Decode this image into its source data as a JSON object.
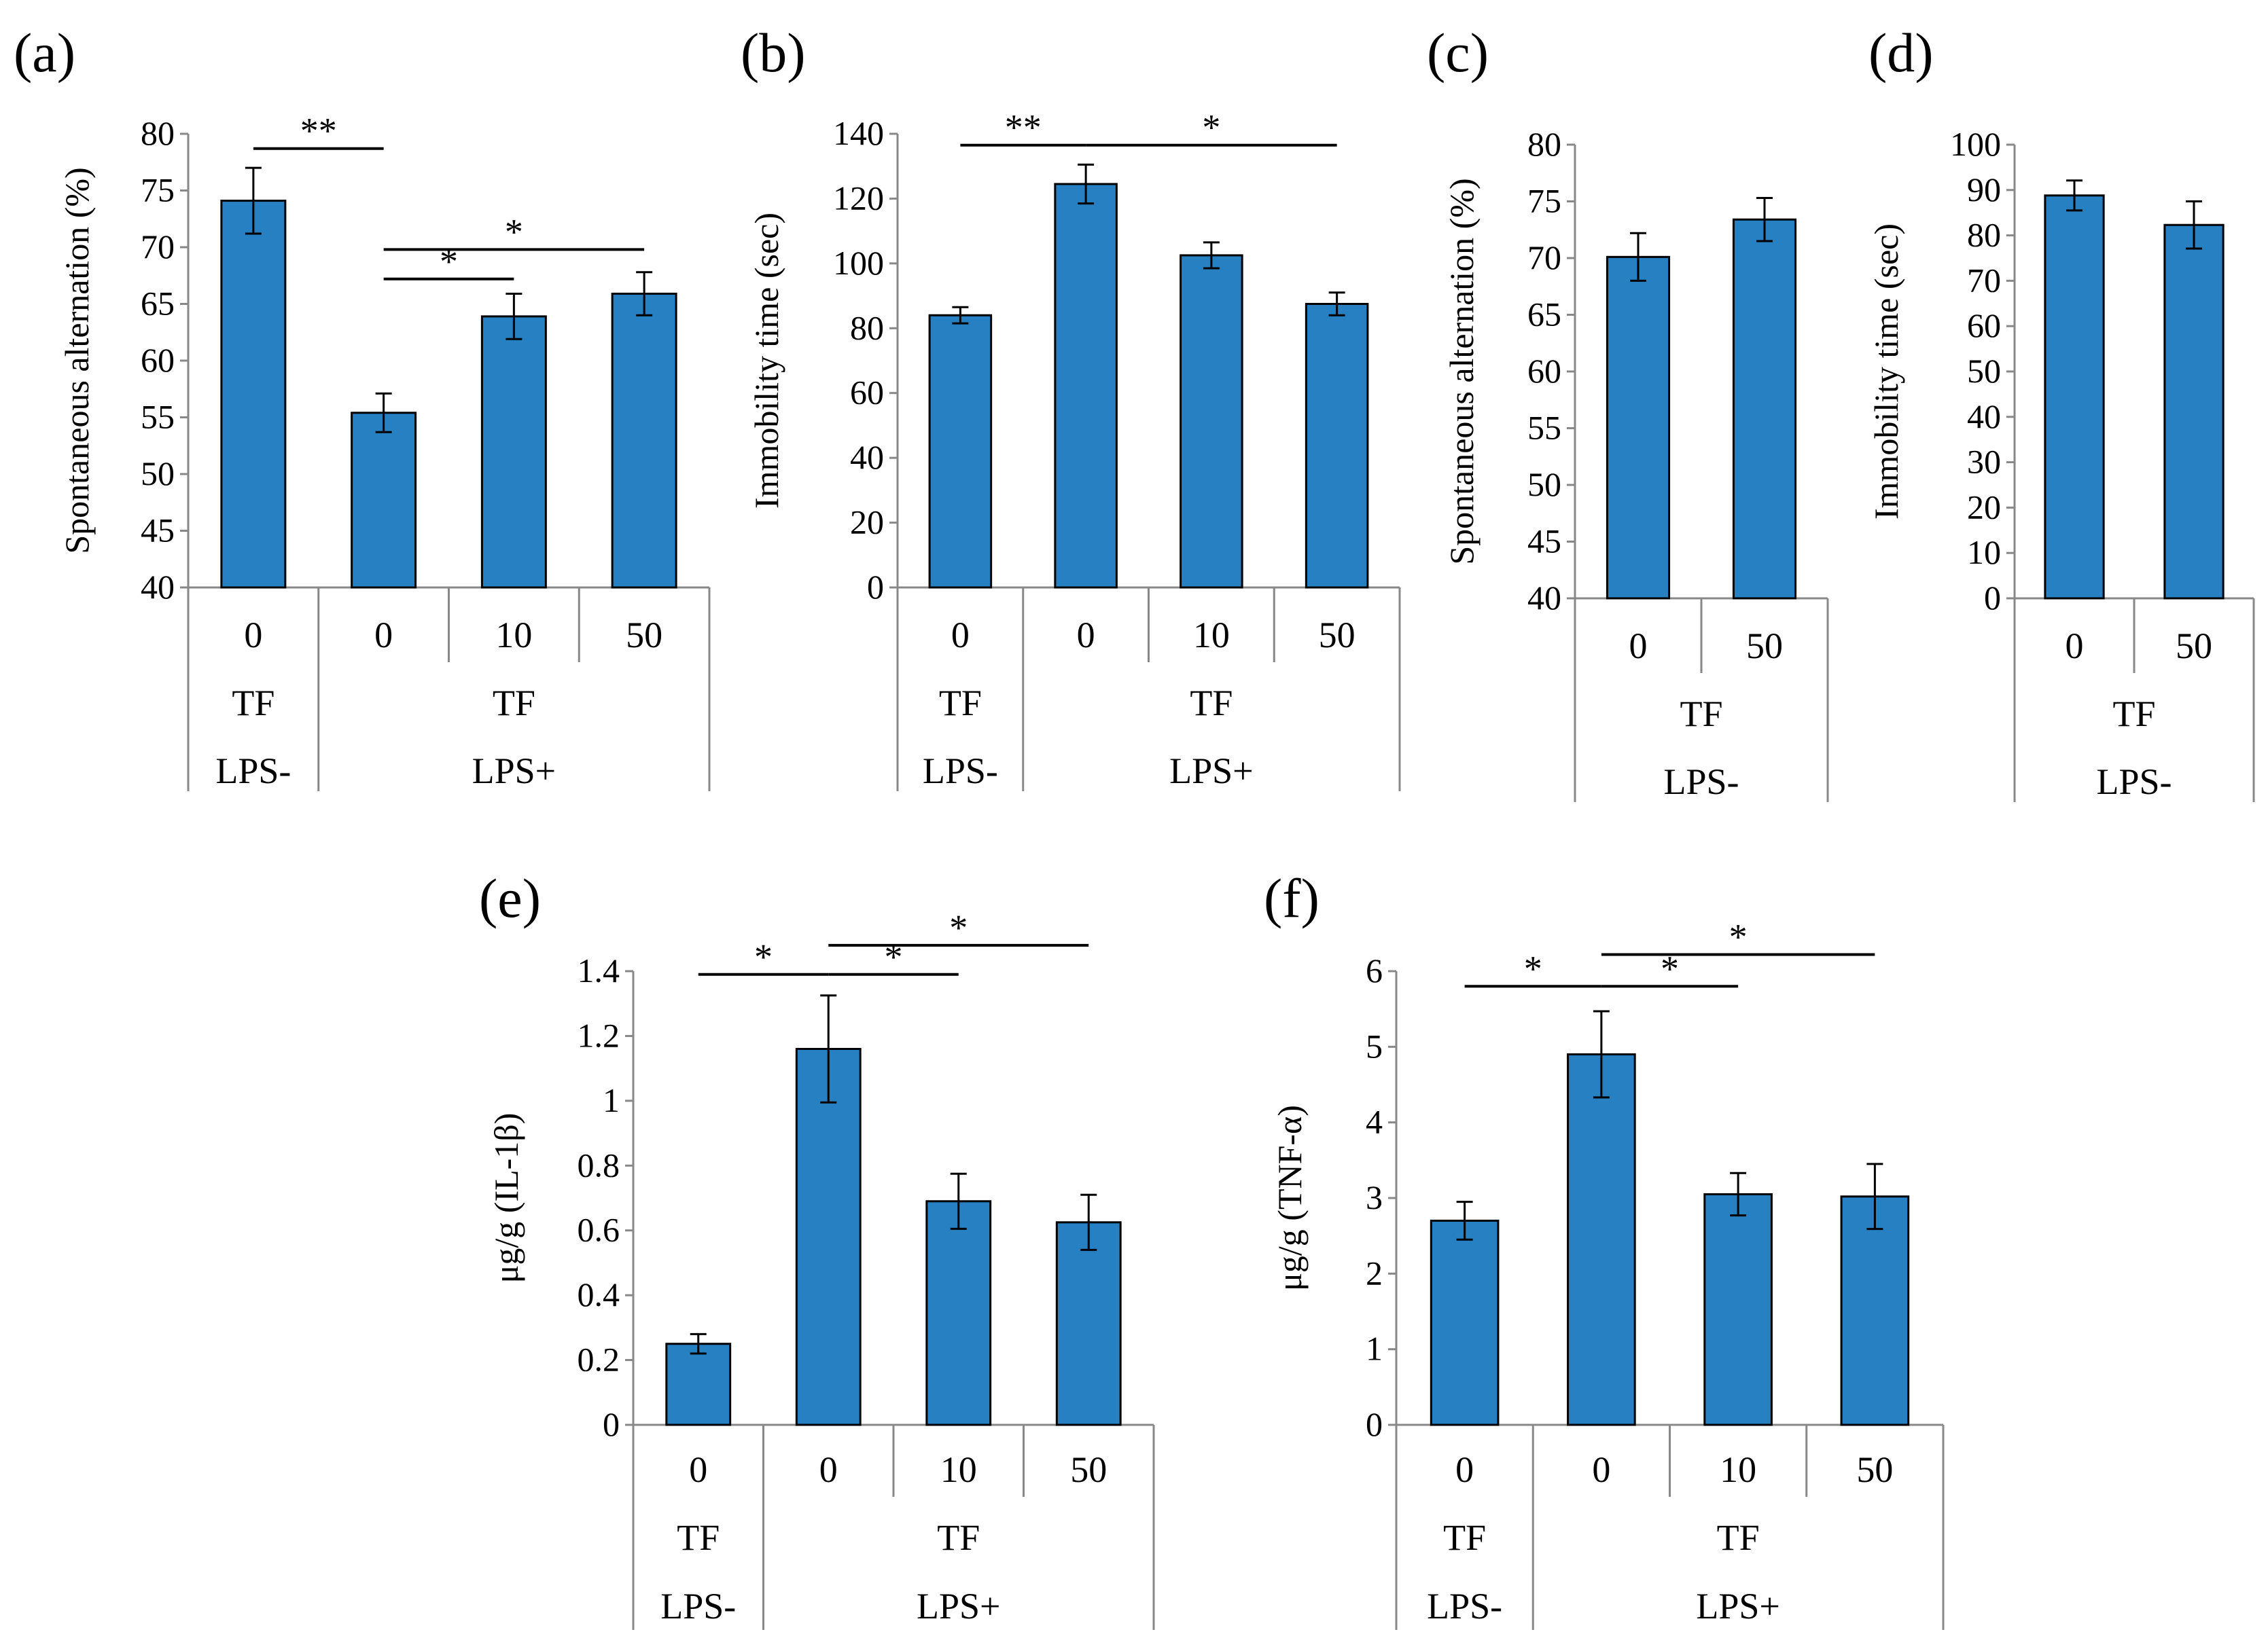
{
  "colors": {
    "bar": "#2680c2",
    "axis": "#888888",
    "text": "#000000"
  },
  "chart_data": [
    {
      "id": "a",
      "panel_label": "(a)",
      "type": "bar",
      "ylabel": "Spontaneous alternation (%)",
      "ylim": [
        40,
        80
      ],
      "yticks": [
        40,
        45,
        50,
        55,
        60,
        65,
        70,
        75,
        80
      ],
      "categories": [
        "0",
        "0",
        "10",
        "50"
      ],
      "values": [
        74.1,
        55.4,
        63.9,
        65.9
      ],
      "errors": [
        2.9,
        1.7,
        2.0,
        1.9
      ],
      "row2": [
        {
          "label": "TF",
          "span": 1
        },
        {
          "label": "TF",
          "span": 3
        }
      ],
      "row3": [
        {
          "label": "LPS-",
          "span": 1
        },
        {
          "label": "LPS+",
          "span": 3
        }
      ],
      "significance": [
        {
          "from": 0,
          "to": 1,
          "y": 78.7,
          "label": "**"
        },
        {
          "from": 1,
          "to": 3,
          "y": 69.8,
          "label": "*"
        },
        {
          "from": 1,
          "to": 2,
          "y": 67.2,
          "label": "*"
        }
      ]
    },
    {
      "id": "b",
      "panel_label": "(b)",
      "type": "bar",
      "ylabel": "Immobility time (sec)",
      "ylim": [
        0,
        140
      ],
      "yticks": [
        0,
        20,
        40,
        60,
        80,
        100,
        120,
        140
      ],
      "categories": [
        "0",
        "0",
        "10",
        "50"
      ],
      "values": [
        84,
        124.5,
        102.5,
        87.5
      ],
      "errors": [
        2.5,
        6.0,
        4.0,
        3.5
      ],
      "row2": [
        {
          "label": "TF",
          "span": 1
        },
        {
          "label": "TF",
          "span": 3
        }
      ],
      "row3": [
        {
          "label": "LPS-",
          "span": 1
        },
        {
          "label": "LPS+",
          "span": 3
        }
      ],
      "significance": [
        {
          "from": 0,
          "to": 1,
          "y": 136.5,
          "label": "**"
        },
        {
          "from": 1,
          "to": 3,
          "y": 136.5,
          "label": "*"
        }
      ]
    },
    {
      "id": "c",
      "panel_label": "(c)",
      "type": "bar",
      "ylabel": "Spontaneous alternation (%)",
      "ylim": [
        40,
        80
      ],
      "yticks": [
        40,
        45,
        50,
        55,
        60,
        65,
        70,
        75,
        80
      ],
      "categories": [
        "0",
        "50"
      ],
      "values": [
        70.1,
        73.4
      ],
      "errors": [
        2.1,
        1.9
      ],
      "row2": [
        {
          "label": "TF",
          "span": 2
        }
      ],
      "row3": [
        {
          "label": "LPS-",
          "span": 2
        }
      ],
      "significance": []
    },
    {
      "id": "d",
      "panel_label": "(d)",
      "type": "bar",
      "ylabel": "Immobility time (sec)",
      "ylim": [
        0,
        100
      ],
      "yticks": [
        0,
        10,
        20,
        30,
        40,
        50,
        60,
        70,
        80,
        90,
        100
      ],
      "categories": [
        "0",
        "50"
      ],
      "values": [
        88.8,
        82.3
      ],
      "errors": [
        3.3,
        5.2
      ],
      "row2": [
        {
          "label": "TF",
          "span": 2
        }
      ],
      "row3": [
        {
          "label": "LPS-",
          "span": 2
        }
      ],
      "significance": []
    },
    {
      "id": "e",
      "panel_label": "(e)",
      "type": "bar",
      "ylabel": "μg/g (IL-1β)",
      "ylim": [
        0,
        1.4
      ],
      "yticks": [
        0,
        0.2,
        0.4,
        0.6,
        0.8,
        1,
        1.2,
        1.4
      ],
      "ytick_labels": [
        "0",
        "0.2",
        "0.4",
        "0.6",
        "0.8",
        "1",
        "1.2",
        "1.4"
      ],
      "categories": [
        "0",
        "0",
        "10",
        "50"
      ],
      "values": [
        0.25,
        1.16,
        0.69,
        0.625
      ],
      "errors": [
        0.03,
        0.165,
        0.085,
        0.085
      ],
      "row2": [
        {
          "label": "TF",
          "span": 1
        },
        {
          "label": "TF",
          "span": 3
        }
      ],
      "row3": [
        {
          "label": "LPS-",
          "span": 1
        },
        {
          "label": "LPS+",
          "span": 3
        }
      ],
      "significance": [
        {
          "from": 0,
          "to": 1,
          "y": 1.39,
          "label": "*"
        },
        {
          "from": 1,
          "to": 3,
          "y": 1.48,
          "label": "*"
        },
        {
          "from": 1,
          "to": 2,
          "y": 1.39,
          "label": "*"
        }
      ]
    },
    {
      "id": "f",
      "panel_label": "(f)",
      "type": "bar",
      "ylabel": "μg/g (TNF-α)",
      "ylim": [
        0,
        6
      ],
      "yticks": [
        0,
        1,
        2,
        3,
        4,
        5,
        6
      ],
      "categories": [
        "0",
        "0",
        "10",
        "50"
      ],
      "values": [
        2.7,
        4.9,
        3.05,
        3.02
      ],
      "errors": [
        0.25,
        0.57,
        0.28,
        0.43
      ],
      "row2": [
        {
          "label": "TF",
          "span": 1
        },
        {
          "label": "TF",
          "span": 3
        }
      ],
      "row3": [
        {
          "label": "LPS-",
          "span": 1
        },
        {
          "label": "LPS+",
          "span": 3
        }
      ],
      "significance": [
        {
          "from": 0,
          "to": 1,
          "y": 5.8,
          "label": "*"
        },
        {
          "from": 1,
          "to": 3,
          "y": 6.22,
          "label": "*"
        },
        {
          "from": 1,
          "to": 2,
          "y": 5.8,
          "label": "*"
        }
      ]
    }
  ]
}
